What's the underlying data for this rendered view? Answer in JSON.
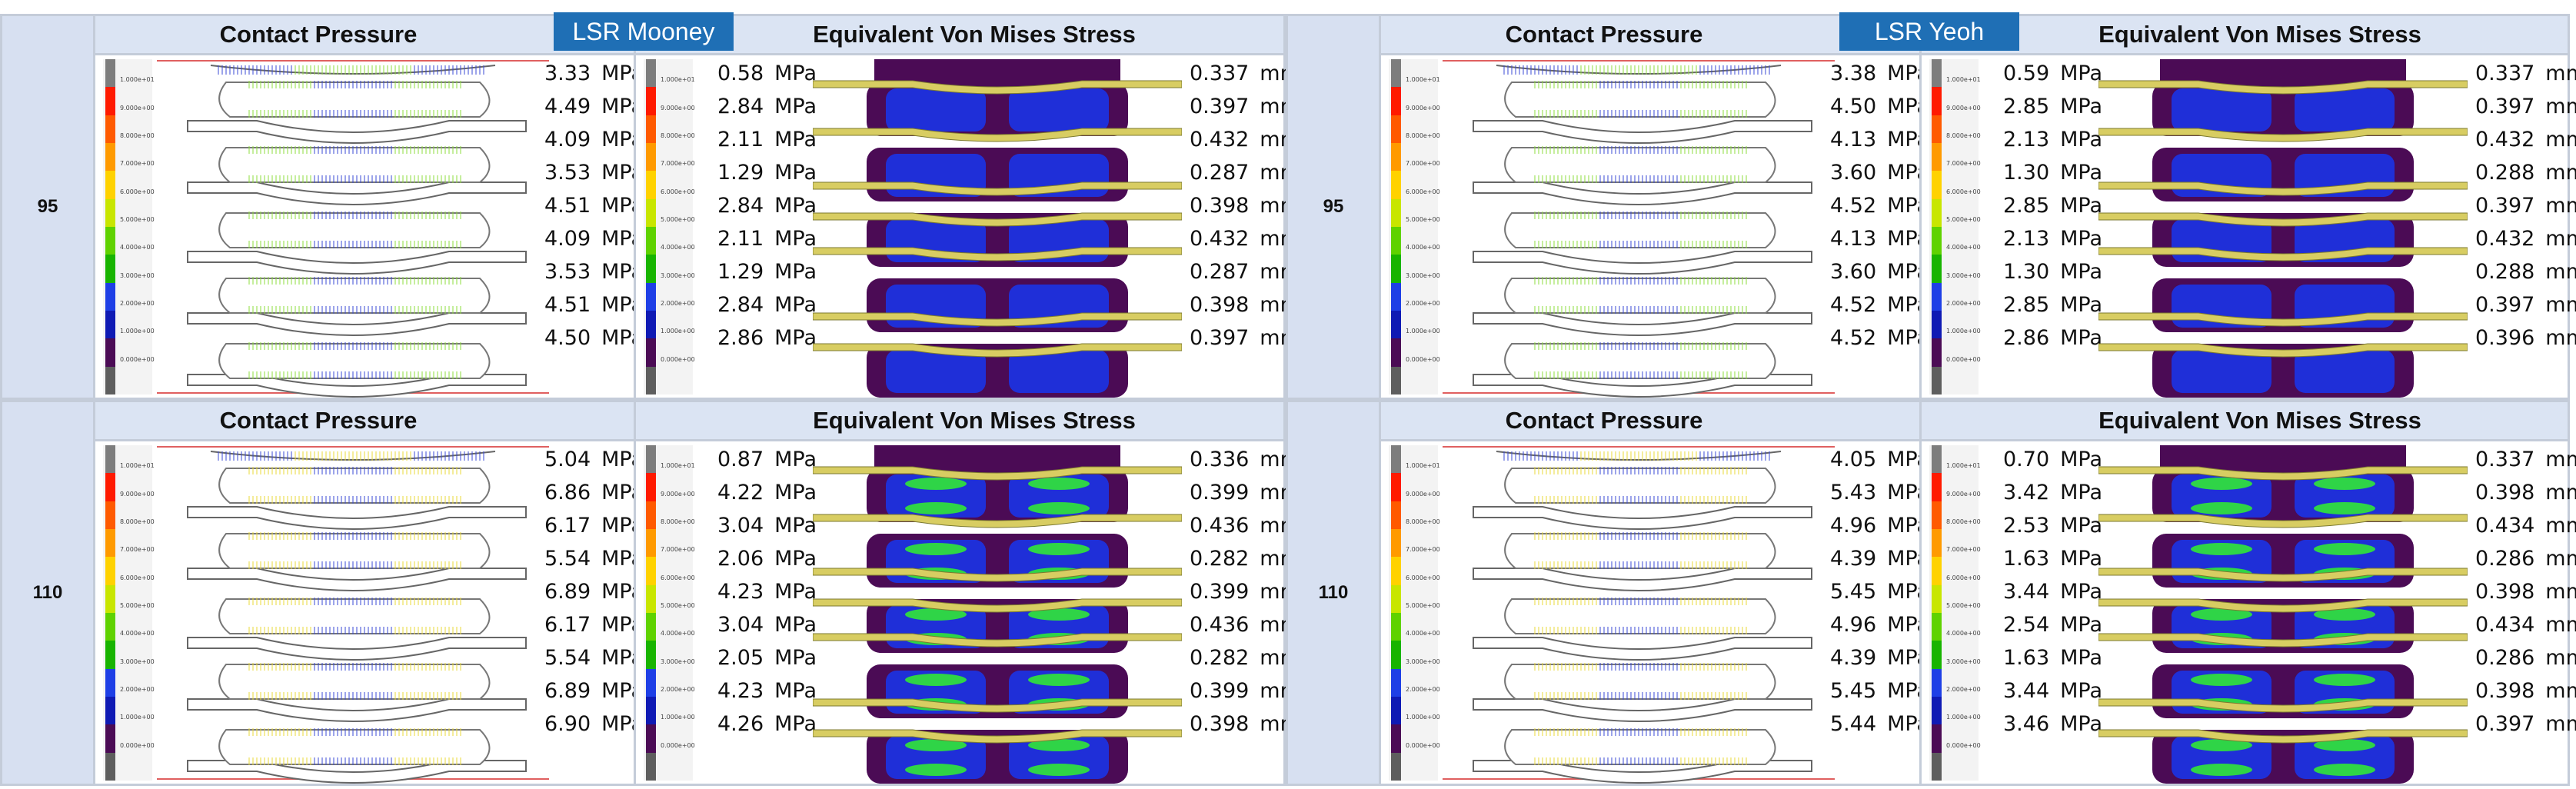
{
  "colors": {
    "panel_border": "#c4ccd9",
    "header_bg": "#dbe4f3",
    "badge_bg": "#1f6fb5",
    "badge_text": "#ffffff",
    "stress_dark": "#4b0b55",
    "stress_blue": "#1f2fd8",
    "stress_green": "#2fd447",
    "plate_yellow": "#d8cd62",
    "contact_blue": "#3a49d6",
    "contact_green": "#8cdc3c",
    "contact_yellow": "#e8da38"
  },
  "colorbar": {
    "ticks": [
      "1.000e+01",
      "9.000e+00",
      "8.000e+00",
      "7.000e+00",
      "6.000e+00",
      "5.000e+00",
      "4.000e+00",
      "3.000e+00",
      "2.000e+00",
      "1.000e+00",
      "0.000e+00"
    ],
    "colors": [
      "#7d7d7d",
      "#ff1a00",
      "#ff5a00",
      "#ff9a00",
      "#ffd200",
      "#c8e600",
      "#5fd200",
      "#18b400",
      "#1e3fe6",
      "#0f1ab4",
      "#4b0b55",
      "#5e5e5e"
    ]
  },
  "labels": {
    "contact_pressure": "Contact Pressure",
    "von_mises": "Equivalent Von  Mises Stress",
    "mpa": "MPa",
    "mm": "mm"
  },
  "models": [
    {
      "name": "LSR Mooney",
      "rows": [
        {
          "label": "95",
          "contact": [
            "3.33",
            "4.49",
            "4.09",
            "3.53",
            "4.51",
            "4.09",
            "3.53",
            "4.51",
            "4.50"
          ],
          "stress": [
            "0.58",
            "2.84",
            "2.11",
            "1.29",
            "2.84",
            "2.11",
            "1.29",
            "2.84",
            "2.86"
          ],
          "deform": [
            "0.337",
            "0.397",
            "0.432",
            "0.287",
            "0.398",
            "0.432",
            "0.287",
            "0.398",
            "0.397"
          ]
        },
        {
          "label": "110",
          "contact": [
            "5.04",
            "6.86",
            "6.17",
            "5.54",
            "6.89",
            "6.17",
            "5.54",
            "6.89",
            "6.90"
          ],
          "stress": [
            "0.87",
            "4.22",
            "3.04",
            "2.06",
            "4.23",
            "3.04",
            "2.05",
            "4.23",
            "4.26"
          ],
          "deform": [
            "0.336",
            "0.399",
            "0.436",
            "0.282",
            "0.399",
            "0.436",
            "0.282",
            "0.399",
            "0.398"
          ]
        }
      ]
    },
    {
      "name": "LSR Yeoh",
      "rows": [
        {
          "label": "95",
          "contact": [
            "3.38",
            "4.50",
            "4.13",
            "3.60",
            "4.52",
            "4.13",
            "3.60",
            "4.52",
            "4.52"
          ],
          "stress": [
            "0.59",
            "2.85",
            "2.13",
            "1.30",
            "2.85",
            "2.13",
            "1.30",
            "2.85",
            "2.86"
          ],
          "deform": [
            "0.337",
            "0.397",
            "0.432",
            "0.288",
            "0.397",
            "0.432",
            "0.288",
            "0.397",
            "0.396"
          ]
        },
        {
          "label": "110",
          "contact": [
            "4.05",
            "5.43",
            "4.96",
            "4.39",
            "5.45",
            "4.96",
            "4.39",
            "5.45",
            "5.44"
          ],
          "stress": [
            "0.70",
            "3.42",
            "2.53",
            "1.63",
            "3.44",
            "2.54",
            "1.63",
            "3.44",
            "3.46"
          ],
          "deform": [
            "0.337",
            "0.398",
            "0.434",
            "0.286",
            "0.398",
            "0.434",
            "0.286",
            "0.398",
            "0.397"
          ]
        }
      ]
    }
  ]
}
